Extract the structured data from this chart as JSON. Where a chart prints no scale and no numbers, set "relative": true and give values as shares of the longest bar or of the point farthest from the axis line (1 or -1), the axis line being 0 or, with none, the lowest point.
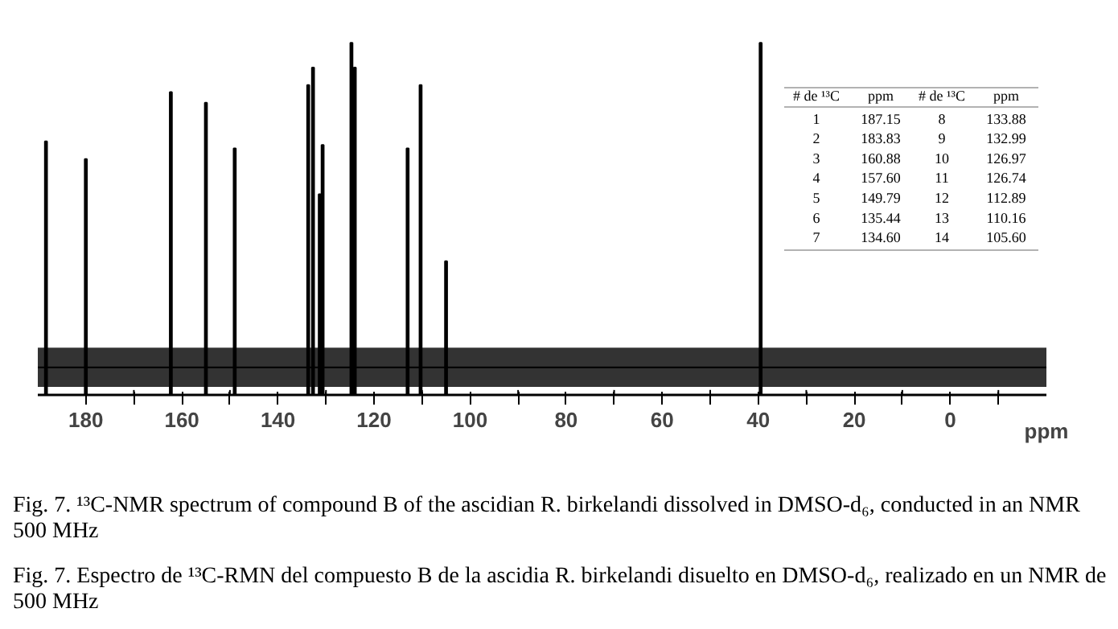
{
  "chart_data": {
    "type": "bar",
    "relative": true,
    "series": [
      {
        "color": "#000000",
        "x": [
          188.3,
          180.0,
          162.3,
          155.0,
          149.0,
          133.7,
          132.7,
          131.3,
          130.7,
          124.7,
          124.0,
          113.0,
          110.3,
          105.0,
          39.5
        ],
        "values": [
          0.72,
          0.67,
          0.86,
          0.83,
          0.7,
          0.88,
          0.93,
          0.57,
          0.71,
          1.0,
          0.93,
          0.7,
          0.88,
          0.38,
          1.0
        ]
      },
      {
        "type": "line",
        "color": "#000000",
        "x": [
          190,
          -20
        ],
        "values": [
          0.078,
          0.078
        ],
        "lower": [
          0.023,
          0.023
        ],
        "upper": [
          0.134,
          0.134
        ]
      }
    ],
    "xlim": [
      190,
      -20
    ],
    "xticks": [
      180,
      {
        "value": 170,
        "label": null
      },
      160,
      {
        "value": 150,
        "label": null
      },
      140,
      {
        "value": 130,
        "label": null
      },
      120,
      {
        "value": 110,
        "label": null
      },
      100,
      {
        "value": 90,
        "label": null
      },
      80,
      {
        "value": 70,
        "label": null
      },
      60,
      {
        "value": 50,
        "label": null
      },
      40,
      {
        "value": 30,
        "label": null
      },
      20,
      {
        "value": 10,
        "label": null
      },
      0,
      {
        "value": -10,
        "label": null
      }
    ],
    "xlabel": "ppm",
    "annotations": [
      "# de ¹³C",
      "ppm",
      "# de ¹³C",
      "ppm",
      "1",
      "187.15",
      "8",
      "133.88",
      "2",
      "183.83",
      "9",
      "132.99",
      "3",
      "160.88",
      "10",
      "126.97",
      "4",
      "157.60",
      "11",
      "126.74",
      "5",
      "149.79",
      "12",
      "112.89",
      "6",
      "135.44",
      "13",
      "110.16",
      "7",
      "134.60",
      "14",
      "105.60",
      "Fig. 7. ¹³C-NMR spectrum of compound B of the ascidian R. birkelandi dissolved in DMSO-d₆, conducted in an NMR 500 MHz",
      "Fig. 7. Espectro de ¹³C-RMN del compuesto B de la ascidia R. birkelandi disuelto en DMSO-d₆, realizado en un NMR de 500 MHz"
    ]
  }
}
